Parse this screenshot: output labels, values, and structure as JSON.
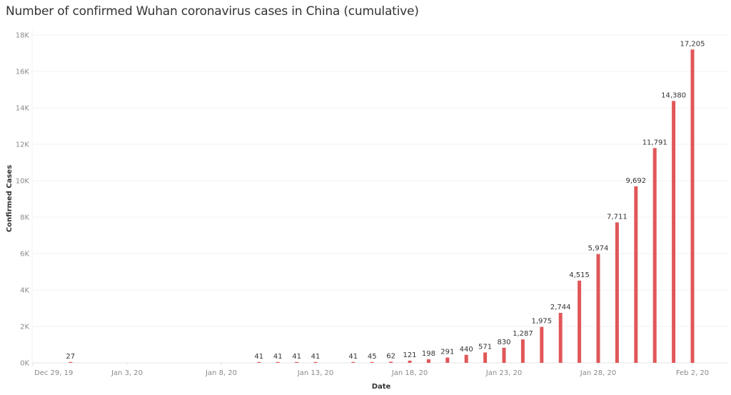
{
  "title": "Number of confirmed Wuhan coronavirus cases in China (cumulative)",
  "colors": {
    "bar": "#e15759",
    "grid": "#f0f0f0",
    "axis": "#e6e6e6"
  },
  "chart_data": {
    "type": "bar",
    "title": "Number of confirmed Wuhan coronavirus cases in China (cumulative)",
    "xlabel": "Date",
    "ylabel": "Confirmed Cases",
    "ylim": [
      0,
      18000
    ],
    "grid": true,
    "legend": null,
    "y_ticks": [
      {
        "value": 0,
        "label": "0K"
      },
      {
        "value": 2000,
        "label": "2K"
      },
      {
        "value": 4000,
        "label": "4K"
      },
      {
        "value": 6000,
        "label": "6K"
      },
      {
        "value": 8000,
        "label": "8K"
      },
      {
        "value": 10000,
        "label": "10K"
      },
      {
        "value": 12000,
        "label": "12K"
      },
      {
        "value": 14000,
        "label": "14K"
      },
      {
        "value": 16000,
        "label": "16K"
      },
      {
        "value": 18000,
        "label": "18K"
      }
    ],
    "x_ticks": [
      {
        "day": 0,
        "label": "Dec 29, 19"
      },
      {
        "day": 5,
        "label": "Jan 3, 20"
      },
      {
        "day": 10,
        "label": "Jan 8, 20"
      },
      {
        "day": 15,
        "label": "Jan 13, 20"
      },
      {
        "day": 20,
        "label": "Jan 18, 20"
      },
      {
        "day": 25,
        "label": "Jan 23, 20"
      },
      {
        "day": 30,
        "label": "Jan 28, 20"
      },
      {
        "day": 35,
        "label": "Feb 2, 20"
      }
    ],
    "points": [
      {
        "date": "Dec 31, 19",
        "day": 2,
        "value": 27,
        "label": "27"
      },
      {
        "date": "Jan 10, 20",
        "day": 12,
        "value": 41,
        "label": "41"
      },
      {
        "date": "Jan 11, 20",
        "day": 13,
        "value": 41,
        "label": "41"
      },
      {
        "date": "Jan 12, 20",
        "day": 14,
        "value": 41,
        "label": "41"
      },
      {
        "date": "Jan 13, 20",
        "day": 15,
        "value": 41,
        "label": "41"
      },
      {
        "date": "Jan 15, 20",
        "day": 17,
        "value": 41,
        "label": "41"
      },
      {
        "date": "Jan 16, 20",
        "day": 18,
        "value": 45,
        "label": "45"
      },
      {
        "date": "Jan 17, 20",
        "day": 19,
        "value": 62,
        "label": "62"
      },
      {
        "date": "Jan 18, 20",
        "day": 20,
        "value": 121,
        "label": "121"
      },
      {
        "date": "Jan 19, 20",
        "day": 21,
        "value": 198,
        "label": "198"
      },
      {
        "date": "Jan 20, 20",
        "day": 22,
        "value": 291,
        "label": "291"
      },
      {
        "date": "Jan 21, 20",
        "day": 23,
        "value": 440,
        "label": "440"
      },
      {
        "date": "Jan 22, 20",
        "day": 24,
        "value": 571,
        "label": "571"
      },
      {
        "date": "Jan 23, 20",
        "day": 25,
        "value": 830,
        "label": "830"
      },
      {
        "date": "Jan 24, 20",
        "day": 26,
        "value": 1287,
        "label": "1,287"
      },
      {
        "date": "Jan 25, 20",
        "day": 27,
        "value": 1975,
        "label": "1,975"
      },
      {
        "date": "Jan 26, 20",
        "day": 28,
        "value": 2744,
        "label": "2,744"
      },
      {
        "date": "Jan 27, 20",
        "day": 29,
        "value": 4515,
        "label": "4,515"
      },
      {
        "date": "Jan 28, 20",
        "day": 30,
        "value": 5974,
        "label": "5,974"
      },
      {
        "date": "Jan 29, 20",
        "day": 31,
        "value": 7711,
        "label": "7,711"
      },
      {
        "date": "Jan 30, 20",
        "day": 32,
        "value": 9692,
        "label": "9,692"
      },
      {
        "date": "Jan 31, 20",
        "day": 33,
        "value": 11791,
        "label": "11,791"
      },
      {
        "date": "Feb 1, 20",
        "day": 34,
        "value": 14380,
        "label": "14,380"
      },
      {
        "date": "Feb 2, 20",
        "day": 35,
        "value": 17205,
        "label": "17,205"
      }
    ]
  }
}
